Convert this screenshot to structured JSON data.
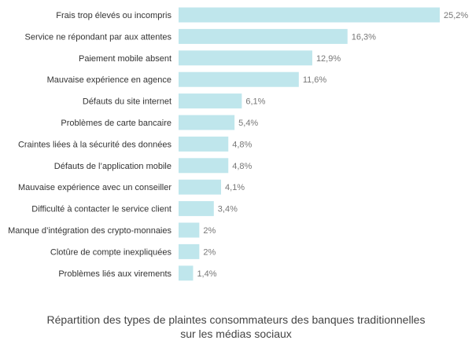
{
  "caption": {
    "line1": "Répartition des types de plaintes consommateurs des banques traditionnelles",
    "line2": "sur les médias sociaux"
  },
  "colors": {
    "bar": "#bfe6ec",
    "label": "#333333",
    "value": "#777777"
  },
  "chart_data": {
    "type": "bar",
    "orientation": "horizontal",
    "title": "",
    "xlabel": "",
    "ylabel": "",
    "xlim": [
      0,
      25.2
    ],
    "grid": false,
    "categories": [
      "Frais trop élevés ou incompris",
      "Service ne répondant par aux attentes",
      "Paiement mobile absent",
      "Mauvaise expérience en agence",
      "Défauts du site internet",
      "Problèmes de carte bancaire",
      "Craintes liées à la sécurité des données",
      "Défauts de l’application mobile",
      "Mauvaise expérience avec un conseiller",
      "Difficulté à contacter le service client",
      "Manque d’intégration des crypto-monnaies",
      "Clotûre de compte inexpliquées",
      "Problèmes liés aux virements"
    ],
    "values": [
      25.2,
      16.3,
      12.9,
      11.6,
      6.1,
      5.4,
      4.8,
      4.8,
      4.1,
      3.4,
      2,
      2,
      1.4
    ],
    "value_labels": [
      "25,2%",
      "16,3%",
      "12,9%",
      "11,6%",
      "6,1%",
      "5,4%",
      "4,8%",
      "4,8%",
      "4,1%",
      "3,4%",
      "2%",
      "2%",
      "1,4%"
    ]
  }
}
